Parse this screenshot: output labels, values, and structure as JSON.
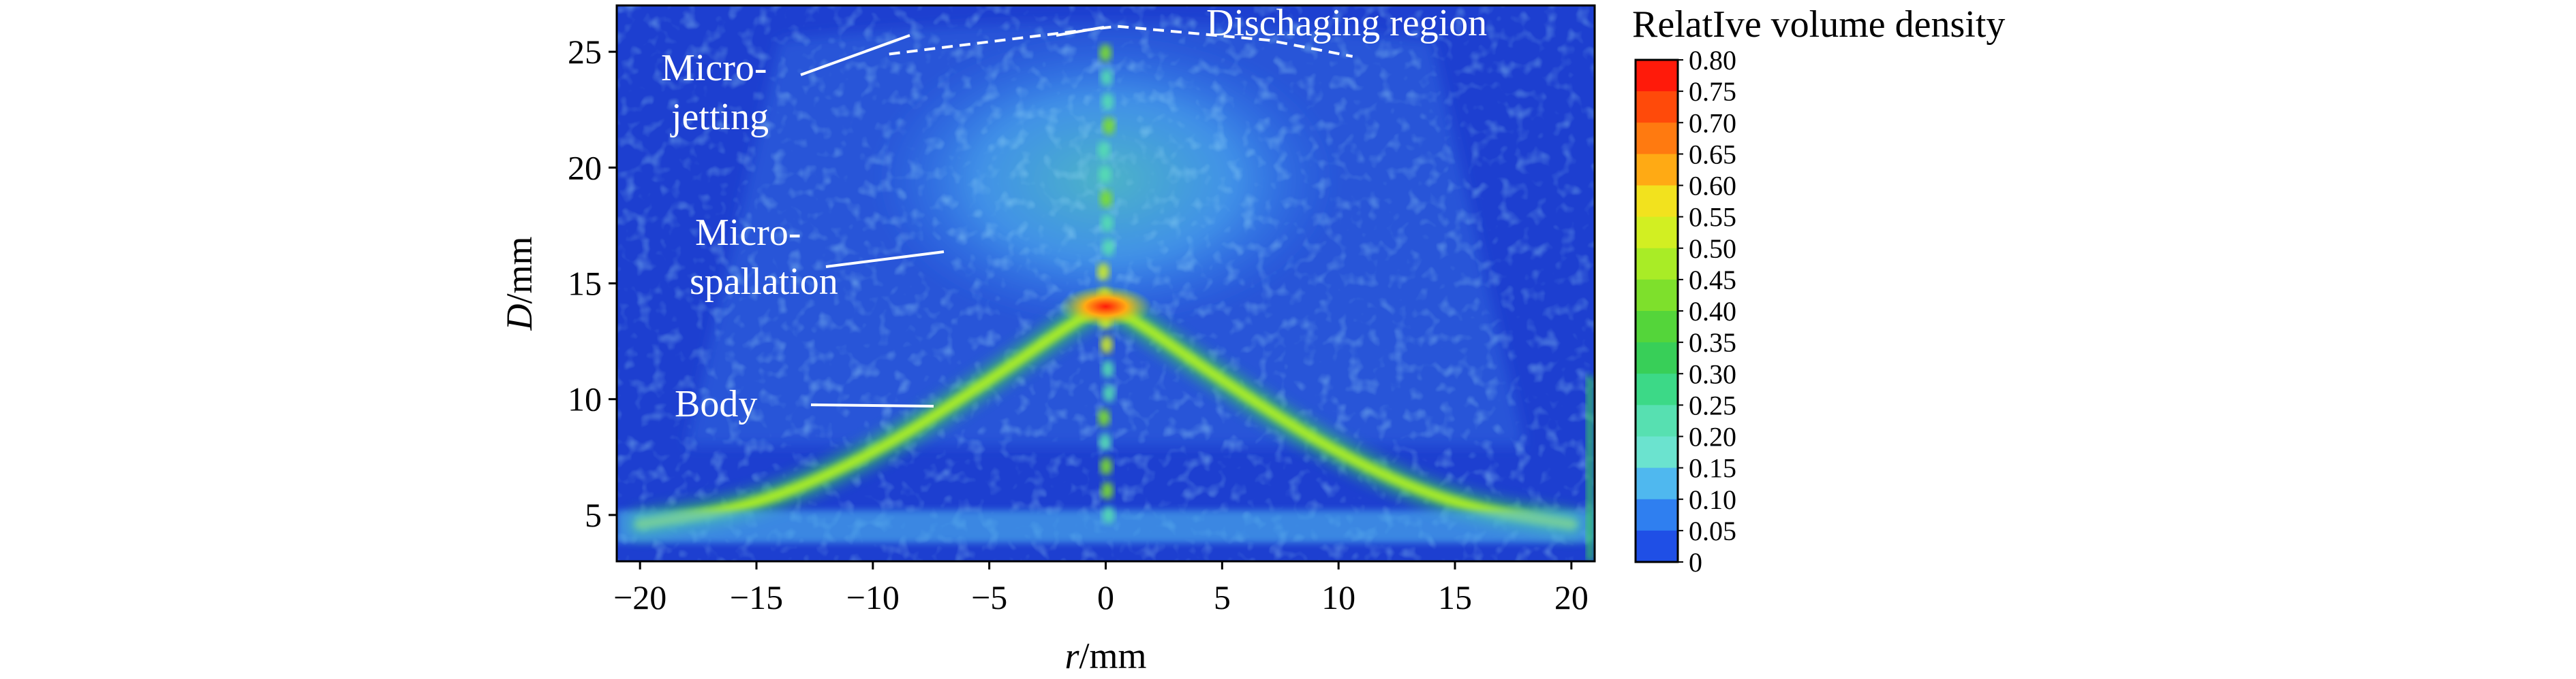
{
  "chart_data": {
    "type": "heatmap",
    "title": "",
    "xlabel_italic": "r",
    "xlabel_unit": "/mm",
    "ylabel_italic": "D",
    "ylabel_unit": "/mm",
    "xlim": [
      -21,
      21
    ],
    "ylim": [
      3,
      27
    ],
    "x_ticks": [
      -20,
      -15,
      -10,
      -5,
      0,
      5,
      10,
      15,
      20
    ],
    "x_tick_labels": [
      "−20",
      "−15",
      "−10",
      "−5",
      "0",
      "5",
      "10",
      "15",
      "20"
    ],
    "y_ticks": [
      5,
      10,
      15,
      20,
      25
    ],
    "y_tick_labels": [
      "5",
      "10",
      "15",
      "20",
      "25"
    ],
    "colorbar": {
      "title": "RelatIve volume density",
      "min": 0,
      "max": 0.8,
      "labels": [
        "0.80",
        "0.75",
        "0.70",
        "0.65",
        "0.60",
        "0.55",
        "0.50",
        "0.45",
        "0.40",
        "0.35",
        "0.30",
        "0.25",
        "0.20",
        "0.15",
        "0.10",
        "0.05",
        "0"
      ],
      "colors": [
        "#ff1a0a",
        "#ff4a0a",
        "#ff7a10",
        "#ffaa14",
        "#f2e21e",
        "#d2ef22",
        "#a9ec26",
        "#7ee02c",
        "#54d53a",
        "#38cf58",
        "#3cd987",
        "#57e0b1",
        "#6be3cf",
        "#4fb8ef",
        "#2f7ff0",
        "#1f4fe6",
        "#1c36d1"
      ]
    },
    "background_color": "#1d3fd0",
    "features": [
      {
        "name": "Body",
        "shape": "inverted-V density front",
        "points": [
          [
            -20,
            4.6
          ],
          [
            -15,
            5.4
          ],
          [
            -10,
            7.6
          ],
          [
            -5,
            10.8
          ],
          [
            -1,
            13.6
          ],
          [
            0,
            14.0
          ],
          [
            1,
            13.6
          ],
          [
            5,
            10.8
          ],
          [
            10,
            7.6
          ],
          [
            15,
            5.4
          ],
          [
            20,
            4.6
          ]
        ],
        "peak_density": 0.45
      },
      {
        "name": "Micro-spallation",
        "shape": "diffuse cloud",
        "r_range": [
          -8,
          8
        ],
        "d_range": [
          14,
          25
        ],
        "density": 0.18
      },
      {
        "name": "Micro-jetting",
        "shape": "central column",
        "r": 0,
        "d_range": [
          5,
          26
        ],
        "density": 0.3
      },
      {
        "name": "Hot spot",
        "r_range": [
          -2,
          2
        ],
        "d_range": [
          13.5,
          14.5
        ],
        "density": 0.8
      }
    ],
    "annotations": [
      {
        "text": "Dischaging region",
        "target": "dashed boundary near top"
      },
      {
        "text_line1": "Micro-",
        "text_line2": "jetting"
      },
      {
        "text_line1": "Micro-",
        "text_line2": "spallation"
      },
      {
        "text": "Body"
      }
    ]
  }
}
